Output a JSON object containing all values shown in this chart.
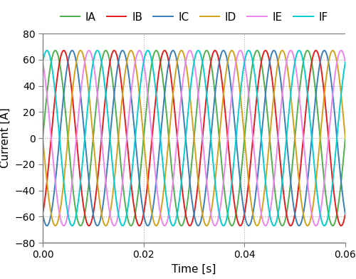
{
  "title": "",
  "xlabel": "Time [s]",
  "ylabel": "Current [A]",
  "xlim": [
    0.0,
    0.06
  ],
  "ylim": [
    -80,
    80
  ],
  "xticks": [
    0.0,
    0.02,
    0.04,
    0.06
  ],
  "yticks": [
    -80,
    -60,
    -40,
    -20,
    0,
    20,
    40,
    60,
    80
  ],
  "frequency": 100,
  "amplitude": 67.0,
  "phase_shifts_deg": [
    0,
    -60,
    -120,
    -180,
    -240,
    -300
  ],
  "series_labels": [
    "IA",
    "IB",
    "IC",
    "ID",
    "IE",
    "IF"
  ],
  "series_colors": [
    "#4daf4a",
    "#e41a1c",
    "#377eb8",
    "#d4a017",
    "#ee82ee",
    "#00ced1"
  ],
  "line_width": 1.4,
  "grid_color": "#aaaaaa",
  "background_color": "#ffffff",
  "legend_ncol": 6,
  "legend_fontsize": 11,
  "axis_fontsize": 11,
  "tick_fontsize": 10
}
